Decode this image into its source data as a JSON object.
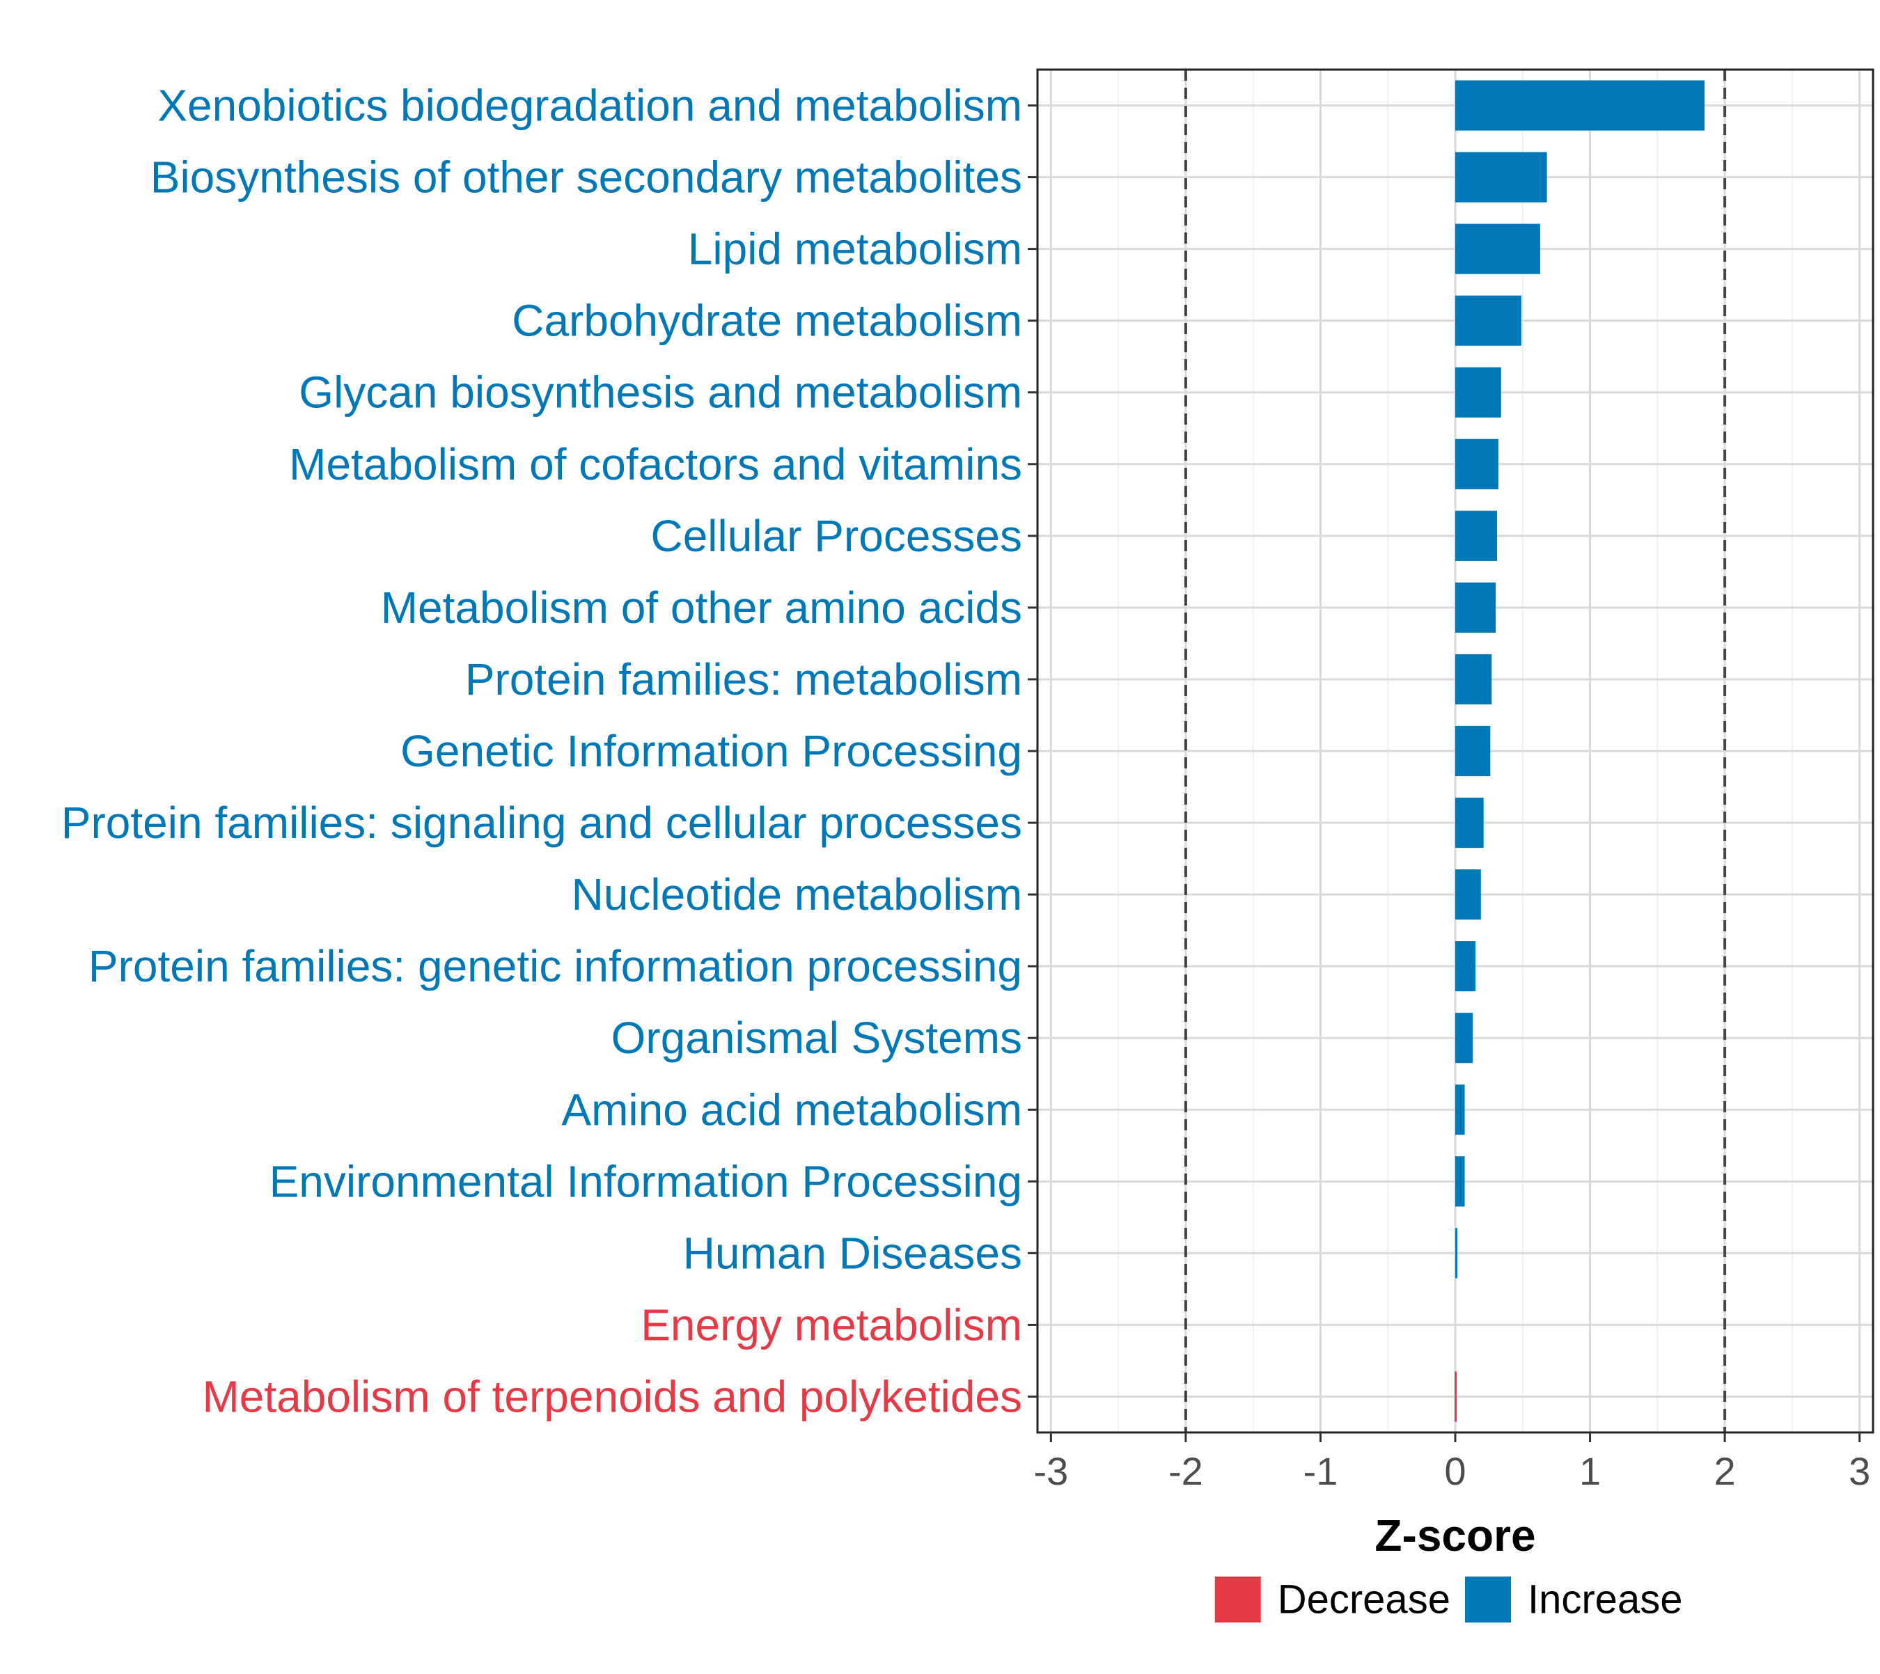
{
  "chart_data": {
    "type": "bar",
    "orientation": "horizontal",
    "categories": [
      "Xenobiotics biodegradation and metabolism",
      "Biosynthesis of other secondary metabolites",
      "Lipid metabolism",
      "Carbohydrate metabolism",
      "Glycan biosynthesis and metabolism",
      "Metabolism of cofactors and vitamins",
      "Cellular Processes",
      "Metabolism of other amino acids",
      "Protein families: metabolism",
      "Genetic Information Processing",
      "Protein families: signaling and cellular processes",
      "Nucleotide metabolism",
      "Protein families: genetic information processing",
      "Organismal Systems",
      "Amino acid metabolism",
      "Environmental Information Processing",
      "Human Diseases",
      "Energy metabolism",
      "Metabolism of terpenoids and polyketides"
    ],
    "values": [
      1.85,
      0.68,
      0.63,
      0.49,
      0.34,
      0.32,
      0.31,
      0.3,
      0.27,
      0.26,
      0.21,
      0.19,
      0.15,
      0.13,
      0.07,
      0.07,
      0.01,
      0.0,
      -0.005
    ],
    "groups": [
      "Increase",
      "Increase",
      "Increase",
      "Increase",
      "Increase",
      "Increase",
      "Increase",
      "Increase",
      "Increase",
      "Increase",
      "Increase",
      "Increase",
      "Increase",
      "Increase",
      "Increase",
      "Increase",
      "Increase",
      "Decrease",
      "Decrease"
    ],
    "title": "",
    "xlabel": "Z-score",
    "ylabel": "",
    "xlim": [
      -3.1,
      3.1
    ],
    "xticks": [
      -3,
      -2,
      -1,
      0,
      1,
      2,
      3
    ],
    "xtick_labels": [
      "-3",
      "-2",
      "-1",
      "0",
      "1",
      "2",
      "3"
    ],
    "reference_lines": [
      -2,
      2
    ],
    "grid": true,
    "legend": {
      "position": "bottom",
      "entries": [
        {
          "label": "Decrease",
          "color": "#e63946"
        },
        {
          "label": "Increase",
          "color": "#0077b6"
        }
      ]
    },
    "colors": {
      "Increase": "#0077b6",
      "Decrease": "#e63946"
    }
  }
}
